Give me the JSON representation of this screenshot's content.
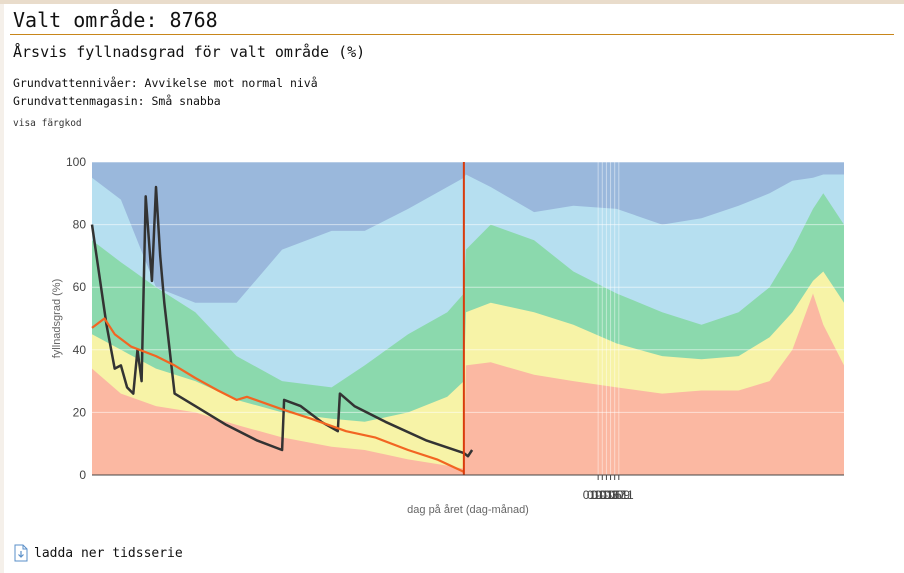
{
  "header": {
    "title": "Valt område: 8768",
    "subtitle": "Årsvis fyllnadsgrad för valt område (%)",
    "info_lines": [
      "Grundvattennivåer: Avvikelse mot normal nivå",
      "Grundvattenmagasin: Små snabba"
    ],
    "color_link": "visa färgkod"
  },
  "download": {
    "label": "ladda ner tidsserie",
    "icon": "download-file-icon"
  },
  "chart_data": {
    "type": "area",
    "title": "",
    "xlabel": "dag på året (dag-månad)",
    "ylabel": "fyllnadsgrad (%)",
    "ylim": [
      0,
      100
    ],
    "x_ticks": [
      "01-05",
      "01-07",
      "01-09",
      "01-11",
      "01-01",
      "01-03"
    ],
    "y_ticks": [
      "0",
      "20",
      "40",
      "60",
      "80",
      "100"
    ],
    "grid": true,
    "x_domain": [
      "05-01",
      "04-30"
    ],
    "bands": [
      {
        "color": "#fbb8a2",
        "x": [
          "05-01",
          "05-15",
          "06-01",
          "06-20",
          "07-10",
          "08-01",
          "08-25",
          "09-10",
          "10-01",
          "10-20",
          "10-28",
          "10-29",
          "11-10",
          "12-01",
          "12-20",
          "01-10",
          "02-01",
          "02-20",
          "03-10",
          "03-25",
          "04-05",
          "04-15",
          "04-20",
          "04-30"
        ],
        "y": [
          34,
          26,
          22,
          20,
          16,
          12,
          9,
          8,
          5,
          3,
          2,
          35,
          36,
          32,
          30,
          28,
          26,
          27,
          27,
          30,
          40,
          58,
          48,
          35
        ]
      },
      {
        "color": "#f7f3a7",
        "x": [
          "05-01",
          "05-15",
          "06-01",
          "06-20",
          "07-10",
          "08-01",
          "08-25",
          "09-10",
          "10-01",
          "10-20",
          "10-28",
          "10-29",
          "11-10",
          "12-01",
          "12-20",
          "01-10",
          "02-01",
          "02-20",
          "03-10",
          "03-25",
          "04-05",
          "04-15",
          "04-20",
          "04-30"
        ],
        "y": [
          45,
          40,
          34,
          30,
          24,
          20,
          18,
          17,
          20,
          25,
          30,
          52,
          55,
          52,
          48,
          42,
          38,
          37,
          38,
          44,
          52,
          62,
          65,
          55
        ]
      },
      {
        "color": "#8bd9ad",
        "x": [
          "05-01",
          "05-15",
          "06-01",
          "06-20",
          "07-10",
          "08-01",
          "08-25",
          "09-10",
          "10-01",
          "10-20",
          "10-28",
          "10-29",
          "11-10",
          "12-01",
          "12-20",
          "01-10",
          "02-01",
          "02-20",
          "03-10",
          "03-25",
          "04-05",
          "04-15",
          "04-20",
          "04-30"
        ],
        "y": [
          75,
          68,
          60,
          52,
          38,
          30,
          28,
          35,
          45,
          52,
          58,
          72,
          80,
          75,
          65,
          58,
          52,
          48,
          52,
          60,
          72,
          85,
          90,
          80
        ]
      },
      {
        "color": "#b6dff0",
        "x": [
          "05-01",
          "05-15",
          "06-01",
          "06-20",
          "07-10",
          "08-01",
          "08-25",
          "09-10",
          "10-01",
          "10-20",
          "10-28",
          "10-29",
          "11-10",
          "12-01",
          "12-20",
          "01-10",
          "02-01",
          "02-20",
          "03-10",
          "03-25",
          "04-05",
          "04-15",
          "04-20",
          "04-30"
        ],
        "y": [
          95,
          88,
          60,
          55,
          55,
          72,
          78,
          78,
          85,
          92,
          95,
          96,
          92,
          84,
          86,
          85,
          80,
          82,
          86,
          90,
          94,
          95,
          96,
          96
        ]
      },
      {
        "color": "#9ab8dc",
        "x": [
          "05-01",
          "04-30"
        ],
        "y": [
          100,
          100
        ]
      }
    ],
    "series": [
      {
        "color": "#333333",
        "x": [
          "05-01",
          "05-08",
          "05-12",
          "05-15",
          "05-18",
          "05-21",
          "05-23",
          "05-25",
          "05-27",
          "05-30",
          "06-01",
          "06-03",
          "06-05",
          "06-10",
          "06-20",
          "07-05",
          "07-20",
          "08-01",
          "08-02",
          "08-10",
          "08-20",
          "08-28",
          "08-29",
          "09-05",
          "09-20",
          "10-10",
          "10-28",
          "10-30",
          "11-01"
        ],
        "y": [
          80,
          48,
          34,
          35,
          28,
          26,
          40,
          30,
          89,
          62,
          92,
          70,
          55,
          26,
          22,
          16,
          11,
          8,
          24,
          22,
          17,
          14,
          26,
          22,
          17,
          11,
          7,
          6,
          8
        ]
      },
      {
        "color": "#f26522",
        "x": [
          "05-01",
          "05-07",
          "05-12",
          "05-20",
          "06-01",
          "06-10",
          "06-20",
          "07-01",
          "07-10",
          "07-15",
          "08-01",
          "08-15",
          "09-01",
          "09-15",
          "10-01",
          "10-15",
          "10-28"
        ],
        "y": [
          47,
          50,
          45,
          41,
          38,
          35,
          31,
          27,
          24,
          25,
          21,
          18,
          14,
          12,
          8,
          5,
          1
        ]
      }
    ],
    "marker": {
      "x": "10-28",
      "color": "#d93b0c"
    }
  }
}
